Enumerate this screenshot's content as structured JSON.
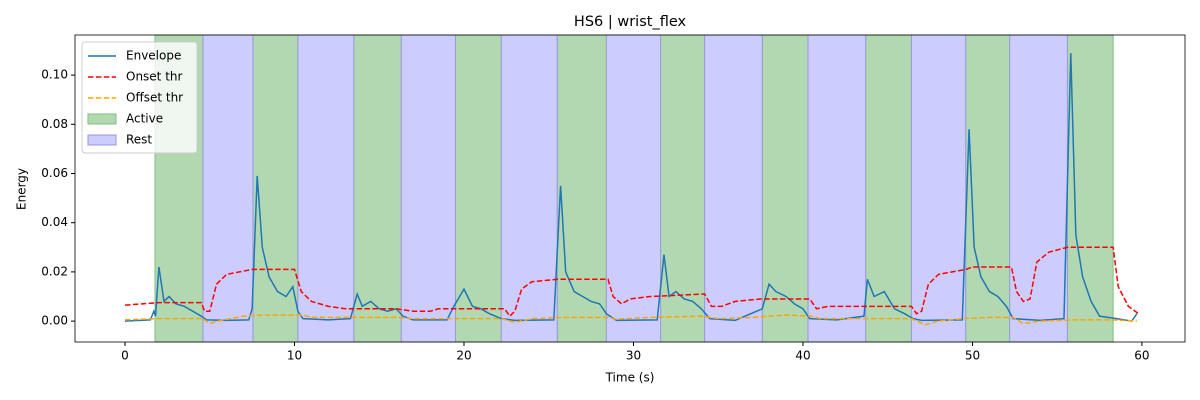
{
  "chart_data": {
    "type": "line",
    "title": "HS6 | wrist_flex",
    "x_label": "Time (s)",
    "y_label": "Energy",
    "xlim": [
      -2.95,
      62.54
    ],
    "ylim": [
      -0.0085,
      0.1163
    ],
    "xticks": [
      0,
      10,
      20,
      30,
      40,
      50,
      60
    ],
    "yticks": [
      {
        "value": 0,
        "label": "0.00"
      },
      0.02,
      0.04,
      0.06,
      0.08,
      {
        "value": 0.1,
        "label": "0.10"
      }
    ],
    "legend": "upper left",
    "series": [
      {
        "name": "Envelope",
        "color": "#1f77b4",
        "dash": "solid",
        "x": [
          0,
          1.5,
          1.7,
          1.8,
          2.0,
          2.3,
          2.6,
          3.0,
          3.5,
          4.0,
          4.5,
          4.8,
          6,
          7.3,
          7.5,
          7.8,
          8.1,
          8.5,
          9,
          9.5,
          9.9,
          10.2,
          10.5,
          12,
          13.3,
          13.7,
          14,
          14.5,
          15,
          15.5,
          16,
          16.4,
          17,
          19,
          19.4,
          20.0,
          20.5,
          21,
          21.5,
          22.2,
          23,
          25.3,
          25.7,
          26.0,
          26.5,
          27,
          27.5,
          28,
          28.4,
          29,
          31.4,
          31.8,
          32.1,
          32.5,
          33,
          33.5,
          34,
          34.5,
          36,
          37.6,
          38.0,
          38.4,
          39,
          39.5,
          40.0,
          40.4,
          42,
          43.6,
          43.8,
          44.2,
          44.8,
          45.4,
          46,
          46.5,
          47,
          49.4,
          49.8,
          50.1,
          50.5,
          51,
          51.5,
          52,
          52.4,
          54,
          55.4,
          55.8,
          56.1,
          56.5,
          57,
          57.5,
          58.5,
          59.4,
          59.7
        ],
        "values": [
          0,
          0.0005,
          0.004,
          0.002,
          0.022,
          0.008,
          0.01,
          0.007,
          0.006,
          0.004,
          0.002,
          0.0005,
          0.0003,
          0.0005,
          0.005,
          0.059,
          0.03,
          0.018,
          0.012,
          0.01,
          0.014,
          0.004,
          0.001,
          0.0005,
          0.001,
          0.011,
          0.006,
          0.008,
          0.005,
          0.004,
          0.005,
          0.002,
          0.0005,
          0.0005,
          0.006,
          0.013,
          0.006,
          0.005,
          0.003,
          0.001,
          0.0003,
          0.0005,
          0.055,
          0.02,
          0.012,
          0.01,
          0.008,
          0.007,
          0.003,
          0.0003,
          0.0005,
          0.027,
          0.01,
          0.012,
          0.009,
          0.008,
          0.005,
          0.001,
          0.0003,
          0.005,
          0.015,
          0.012,
          0.01,
          0.007,
          0.005,
          0.001,
          0.0005,
          0.002,
          0.017,
          0.01,
          0.012,
          0.005,
          0.003,
          0.001,
          0.0003,
          0.0005,
          0.078,
          0.03,
          0.018,
          0.012,
          0.01,
          0.006,
          0.001,
          0.0003,
          0.001,
          0.109,
          0.035,
          0.018,
          0.008,
          0.002,
          0.001,
          0,
          0.003
        ]
      },
      {
        "name": "Onset thr",
        "color": "#ff0000",
        "dash": "dashed",
        "x": [
          0,
          2,
          4.5,
          4.7,
          5.0,
          5.4,
          6,
          7.5,
          10,
          10.4,
          11,
          12,
          13,
          16,
          17,
          18,
          18.5,
          22.4,
          22.7,
          23,
          23.4,
          24,
          25.5,
          28.5,
          28.8,
          29.3,
          29.8,
          31,
          34.2,
          34.6,
          35.2,
          36,
          37.5,
          40.4,
          40.8,
          41.5,
          46.4,
          46.7,
          47,
          47.4,
          48,
          49.6,
          50,
          52.3,
          52.6,
          53,
          53.4,
          53.8,
          54.5,
          55.6,
          58.3,
          58.6,
          59.2,
          59.8
        ],
        "values": [
          0.0065,
          0.0075,
          0.0075,
          0.004,
          0.004,
          0.015,
          0.019,
          0.021,
          0.021,
          0.012,
          0.008,
          0.006,
          0.005,
          0.005,
          0.004,
          0.004,
          0.005,
          0.005,
          0.002,
          0.004,
          0.013,
          0.016,
          0.017,
          0.017,
          0.01,
          0.007,
          0.009,
          0.01,
          0.011,
          0.006,
          0.006,
          0.008,
          0.009,
          0.009,
          0.005,
          0.006,
          0.006,
          0.003,
          0.004,
          0.015,
          0.019,
          0.021,
          0.022,
          0.022,
          0.012,
          0.008,
          0.009,
          0.024,
          0.028,
          0.03,
          0.03,
          0.014,
          0.006,
          0.003
        ]
      },
      {
        "name": "Offset thr",
        "color": "#ffa500",
        "dash": "dashed",
        "x": [
          0,
          2,
          4.6,
          5,
          5.5,
          7,
          8,
          10.5,
          11,
          16,
          17,
          22.2,
          23,
          24,
          26,
          28.5,
          29,
          31,
          34,
          35,
          37,
          39,
          40.5,
          41,
          46.4,
          47.2,
          48,
          49.5,
          51,
          52.4,
          53,
          54,
          56,
          58.3,
          59.7
        ],
        "values": [
          0.0005,
          0.001,
          0.001,
          -0.001,
          0,
          0.002,
          0.0025,
          0.0025,
          0.0015,
          0.0015,
          0.001,
          0.001,
          -0.0005,
          0.001,
          0.0015,
          0.0015,
          0.0008,
          0.0015,
          0.002,
          0.001,
          0.0015,
          0.0025,
          0.002,
          0.001,
          0.001,
          -0.0015,
          0,
          0.001,
          0.0015,
          0.0015,
          -0.001,
          0,
          0.0005,
          0.0005,
          0
        ]
      }
    ],
    "spans": [
      {
        "name": "Active",
        "color": "#b2d8b2",
        "edge": "#7fbf7f",
        "ranges": [
          [
            1.77,
            4.6
          ],
          [
            7.55,
            10.2
          ],
          [
            13.5,
            16.3
          ],
          [
            19.5,
            22.2
          ],
          [
            25.5,
            28.4
          ],
          [
            31.6,
            34.2
          ],
          [
            37.6,
            40.3
          ],
          [
            43.7,
            46.4
          ],
          [
            49.6,
            52.2
          ],
          [
            55.6,
            58.3
          ]
        ]
      },
      {
        "name": "Rest",
        "color": "#ccccff",
        "edge": "#9999dd",
        "ranges": [
          [
            4.6,
            7.55
          ],
          [
            10.2,
            13.5
          ],
          [
            16.3,
            19.5
          ],
          [
            22.2,
            25.5
          ],
          [
            28.4,
            31.6
          ],
          [
            34.2,
            37.6
          ],
          [
            40.3,
            43.7
          ],
          [
            46.4,
            49.6
          ],
          [
            52.2,
            55.6
          ]
        ]
      }
    ]
  }
}
